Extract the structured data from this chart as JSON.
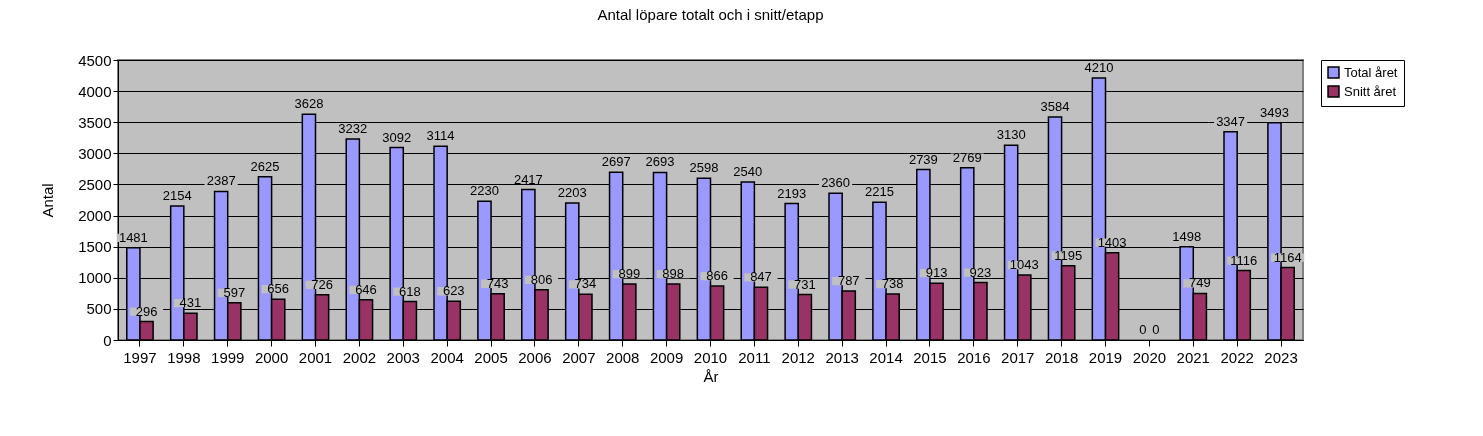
{
  "chart_data": {
    "type": "bar",
    "title": "Antal löpare totalt och i snitt/etapp",
    "xlabel": "År",
    "ylabel": "Antal",
    "categories": [
      "1997",
      "1998",
      "1999",
      "2000",
      "2001",
      "2002",
      "2003",
      "2004",
      "2005",
      "2006",
      "2007",
      "2008",
      "2009",
      "2010",
      "2011",
      "2012",
      "2013",
      "2014",
      "2015",
      "2016",
      "2017",
      "2018",
      "2019",
      "2020",
      "2021",
      "2022",
      "2023"
    ],
    "series": [
      {
        "name": "Total året",
        "color": "#9999ff",
        "values": [
          1481,
          2154,
          2387,
          2625,
          3628,
          3232,
          3092,
          3114,
          2230,
          2417,
          2203,
          2697,
          2693,
          2598,
          2540,
          2193,
          2360,
          2215,
          2739,
          2769,
          3130,
          3584,
          4210,
          0,
          1498,
          3347,
          3493
        ]
      },
      {
        "name": "Snitt året",
        "color": "#993366",
        "values": [
          296,
          431,
          597,
          656,
          726,
          646,
          618,
          623,
          743,
          806,
          734,
          899,
          898,
          866,
          847,
          731,
          787,
          738,
          913,
          923,
          1043,
          1195,
          1403,
          0,
          749,
          1116,
          1164
        ]
      }
    ],
    "ylim": [
      0,
      4500
    ],
    "yticks": [
      0,
      500,
      1000,
      1500,
      2000,
      2500,
      3000,
      3500,
      4000,
      4500
    ],
    "grid": "y",
    "legend": "right",
    "data_labels": true
  }
}
